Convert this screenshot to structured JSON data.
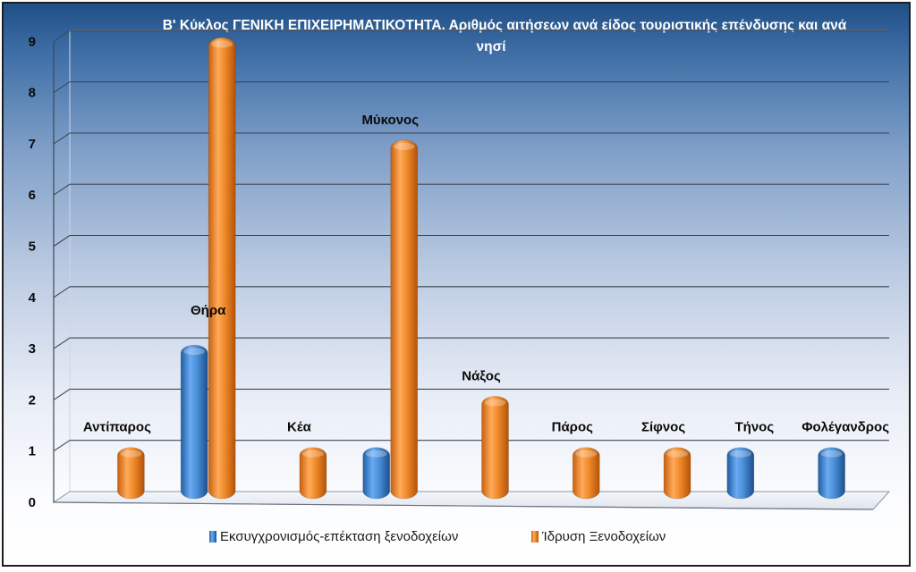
{
  "chart_data": {
    "type": "bar",
    "title_lines": [
      "Β' Κύκλος ΓΕΝΙΚΗ ΕΠΙΧΕΙΡΗΜΑΤΙΚΟΤΗΤΑ.  Αριθμός αιτήσεων ανά είδος τουριστικής επένδυσης  και ανά",
      "νησί"
    ],
    "categories": [
      "Αντίπαρος",
      "Θήρα",
      "Κέα",
      "Μύκονος",
      "Νάξος",
      "Πάρος",
      "Σίφνος",
      "Τήνος",
      "Φολέγανδρος"
    ],
    "series": [
      {
        "name": "Εκσυγχρονισμός-επέκταση  ξενοδοχείων",
        "color": "#4a90d9",
        "values": [
          0,
          3,
          0,
          1,
          0,
          0,
          0,
          1,
          1
        ]
      },
      {
        "name": "Ίδρυση Ξενοδοχείων",
        "color": "#f08a2a",
        "values": [
          1,
          9,
          1,
          7,
          2,
          1,
          1,
          0,
          0
        ]
      }
    ],
    "y_ticks": [
      "0",
      "1",
      "2",
      "3",
      "4",
      "5",
      "6",
      "7",
      "8",
      "9"
    ],
    "ylim": [
      0,
      9
    ],
    "grid": true,
    "legend_position": "bottom",
    "style": "3d-cylinder"
  }
}
